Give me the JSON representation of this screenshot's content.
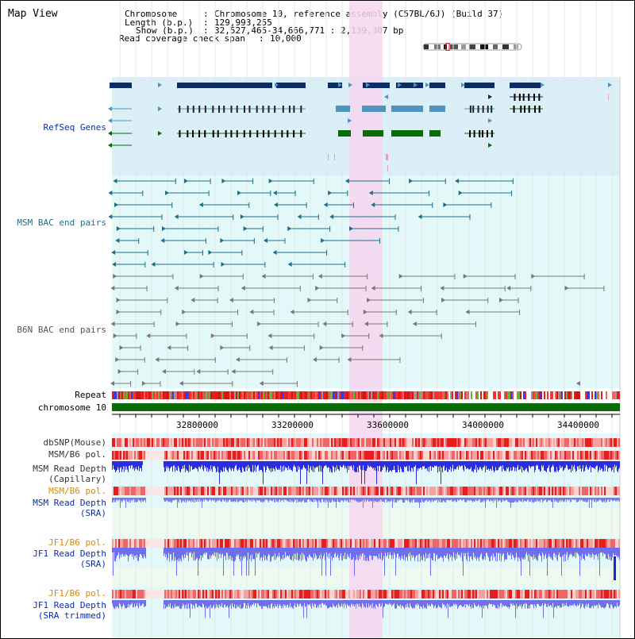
{
  "title": "Map View",
  "info": {
    "chromosome_label": "Chromosome",
    "chromosome_value": "Chromosome 10, reference assembly (C57BL/6J) (Build 37)",
    "length_label": "Length (b.p.)",
    "length_value": "129,993,255",
    "show_label": "Show (b.p.)",
    "show_value": "32,527,465-34,666,771 : 2,139,307 bp",
    "coverage_label": "Read coverage check span",
    "coverage_value": "10,000"
  },
  "tracks": {
    "refseq": "RefSeq Genes",
    "msm_bac": "MSM BAC end pairs",
    "b6n_bac": "B6N BAC end pairs",
    "repeat": "Repeat",
    "chromosome": "chromosome 10",
    "dbsnp": "dbSNP(Mouse)",
    "msm_b6_pol": "MSM/B6 pol.",
    "msm_depth_cap_1": "MSM Read Depth",
    "msm_depth_cap_2": "(Capillary)",
    "msm_b6_pol_2": "MSM/B6 pol.",
    "msm_depth_sra_1": "MSM Read Depth",
    "msm_depth_sra_2": "(SRA)",
    "jf1_b6_pol": "JF1/B6 pol.",
    "jf1_depth_sra_1": "JF1 Read Depth",
    "jf1_depth_sra_2": "(SRA)",
    "jf1_b6_pol_2": "JF1/B6 pol.",
    "jf1_depth_trim_1": "JF1 Read Depth",
    "jf1_depth_trim_2": "(SRA trimmed)"
  },
  "axis": {
    "ticks": [
      "32800000",
      "33200000",
      "33600000",
      "34000000",
      "34400000"
    ]
  },
  "colors": {
    "refseq_bg": "#dbeff8",
    "bac_bg": "#e3f9f9",
    "highlight": "#f7d6f1",
    "refseq_dark": "#0b2d63",
    "refseq_mid": "#4f94bf",
    "refseq_green": "#0a6b0a",
    "msm_bac": "#1d6f8a",
    "b6n_bac": "#777777",
    "chromosome_bar": "#0b6b0b",
    "depth_blue": "#3a3ae8",
    "pol_red": "#e83a3a",
    "label_blue": "#0b2fa8",
    "label_teal": "#1d6f8a",
    "label_orange": "#d98a00"
  }
}
